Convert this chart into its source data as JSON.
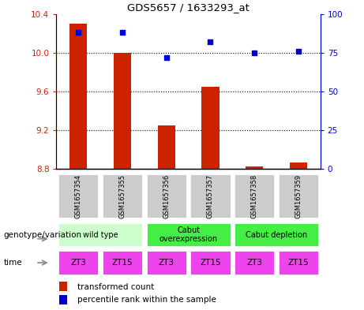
{
  "title": "GDS5657 / 1633293_at",
  "samples": [
    "GSM1657354",
    "GSM1657355",
    "GSM1657356",
    "GSM1657357",
    "GSM1657358",
    "GSM1657359"
  ],
  "bar_values": [
    10.3,
    10.0,
    9.25,
    9.65,
    8.83,
    8.87
  ],
  "bar_bottom": 8.8,
  "percentile_values": [
    88,
    88,
    72,
    82,
    75,
    76
  ],
  "left_ylim": [
    8.8,
    10.4
  ],
  "right_ylim": [
    0,
    100
  ],
  "left_yticks": [
    8.8,
    9.2,
    9.6,
    10.0,
    10.4
  ],
  "right_yticks": [
    0,
    25,
    50,
    75,
    100
  ],
  "bar_color": "#cc2200",
  "dot_color": "#0000cc",
  "genotype_groups": [
    {
      "label": "wild type",
      "start": 0,
      "end": 2,
      "color": "#ccffcc"
    },
    {
      "label": "Cabut\noverexpression",
      "start": 2,
      "end": 4,
      "color": "#44ee44"
    },
    {
      "label": "Cabut depletion",
      "start": 4,
      "end": 6,
      "color": "#44ee44"
    }
  ],
  "time_labels": [
    "ZT3",
    "ZT15",
    "ZT3",
    "ZT15",
    "ZT3",
    "ZT15"
  ],
  "time_color": "#ee44ee",
  "sample_box_color": "#cccccc",
  "left_tick_color": "#cc2200",
  "right_tick_color": "#0000cc",
  "legend_bar_label": "transformed count",
  "legend_dot_label": "percentile rank within the sample",
  "genotype_label": "genotype/variation",
  "time_label": "time"
}
